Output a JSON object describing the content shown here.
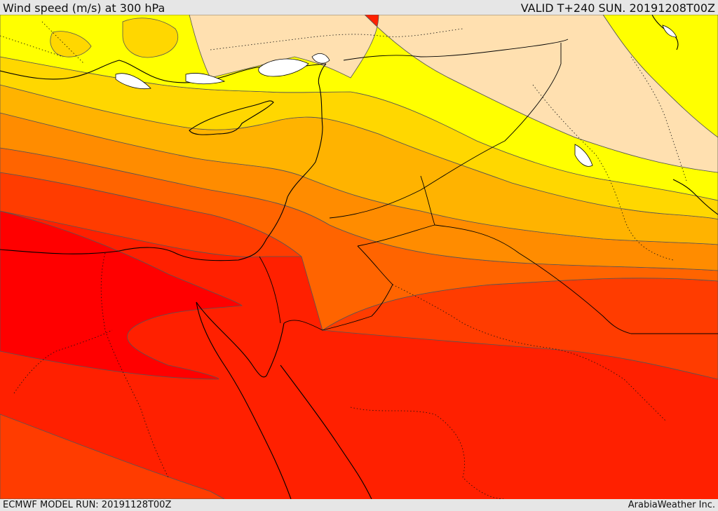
{
  "header": {
    "title": "Wind speed (m/s) at 300 hPa",
    "valid": "VALID T+240 SUN. 20191208T00Z"
  },
  "footer": {
    "model_run": "ECMWF MODEL RUN: 20191128T00Z",
    "brand": "ArabiaWeather Inc."
  },
  "map": {
    "field": "wind speed",
    "level": "300 hPa",
    "colors": {
      "low": "#ffe0b0",
      "band_1": "#ffff00",
      "band_2": "#ffd700",
      "band_3": "#ffb300",
      "band_4": "#ff8c00",
      "band_5": "#ff6400",
      "band_6": "#ff3c00",
      "band_7": "#ff2000",
      "core": "#ff0000",
      "contour": "#555555",
      "coast": "#000000"
    }
  }
}
